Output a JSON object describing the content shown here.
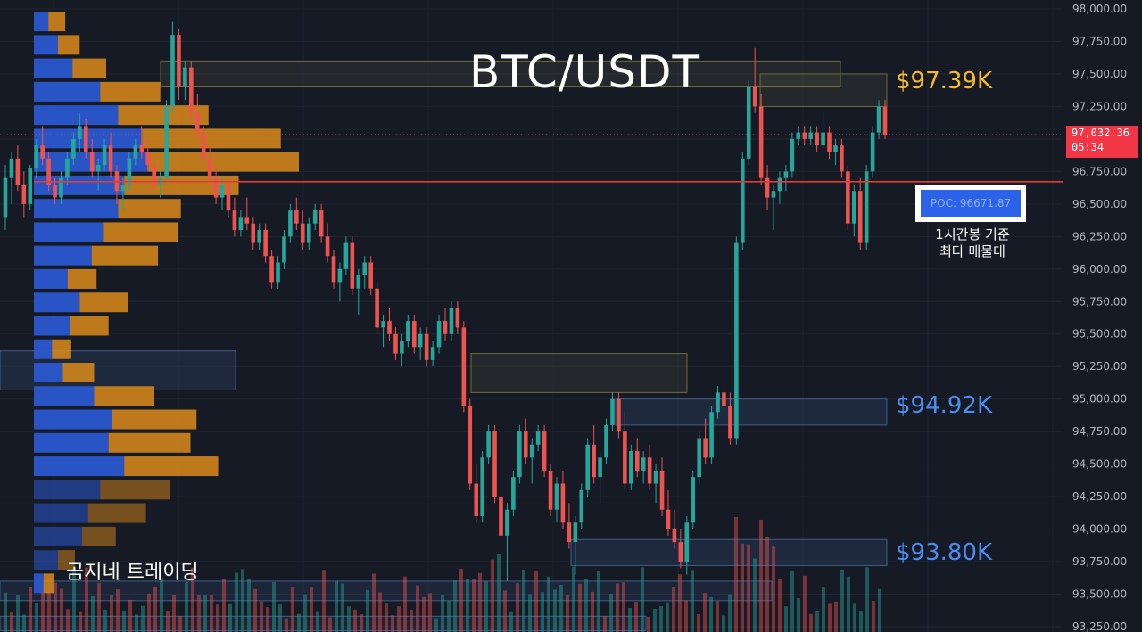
{
  "chart_data": {
    "type": "candlestick",
    "title": "BTC/USDT",
    "ylim": [
      93250,
      98000
    ],
    "y_ticks": [
      "98,000.00",
      "97,750.00",
      "97,500.00",
      "97,250.00",
      "97,000.00",
      "96,750.00",
      "96,500.00",
      "96,250.00",
      "96,000.00",
      "95,750.00",
      "95,500.00",
      "95,250.00",
      "95,000.00",
      "94,750.00",
      "94,500.00",
      "94,250.00",
      "94,000.00",
      "93,750.00",
      "93,500.00",
      "93,250.00"
    ],
    "current_price": "97,032.36",
    "countdown": "05:34",
    "current_price_value": 97032.36,
    "poc_value": 96671.87,
    "poc_label": "POC: 96671.87",
    "poc_note_line1": "1시간봉 기준",
    "poc_note_line2": "최다 매물대",
    "levels": [
      {
        "label": "$97.39K",
        "value": 97390,
        "color": "#f5b82e"
      },
      {
        "label": "$94.92K",
        "value": 94920,
        "color": "#4a8cf0"
      },
      {
        "label": "$93.80K",
        "value": 93800,
        "color": "#4a8cf0"
      }
    ],
    "volume_profile": [
      {
        "price": 97900,
        "buy": 12,
        "sell": 14
      },
      {
        "price": 97720,
        "buy": 20,
        "sell": 18
      },
      {
        "price": 97540,
        "buy": 32,
        "sell": 28
      },
      {
        "price": 97360,
        "buy": 55,
        "sell": 50
      },
      {
        "price": 97180,
        "buy": 70,
        "sell": 75
      },
      {
        "price": 97000,
        "buy": 90,
        "sell": 115
      },
      {
        "price": 96820,
        "buy": 95,
        "sell": 125
      },
      {
        "price": 96640,
        "buy": 75,
        "sell": 95
      },
      {
        "price": 96460,
        "buy": 70,
        "sell": 52
      },
      {
        "price": 96280,
        "buy": 58,
        "sell": 62
      },
      {
        "price": 96100,
        "buy": 48,
        "sell": 55
      },
      {
        "price": 95920,
        "buy": 28,
        "sell": 24
      },
      {
        "price": 95740,
        "buy": 38,
        "sell": 40
      },
      {
        "price": 95560,
        "buy": 30,
        "sell": 32
      },
      {
        "price": 95380,
        "buy": 15,
        "sell": 16
      },
      {
        "price": 95200,
        "buy": 24,
        "sell": 26
      },
      {
        "price": 95020,
        "buy": 50,
        "sell": 50
      },
      {
        "price": 94840,
        "buy": 65,
        "sell": 70
      },
      {
        "price": 94660,
        "buy": 62,
        "sell": 68
      },
      {
        "price": 94480,
        "buy": 75,
        "sell": 78
      },
      {
        "price": 94300,
        "buy": 55,
        "sell": 58
      },
      {
        "price": 94120,
        "buy": 45,
        "sell": 48
      },
      {
        "price": 93940,
        "buy": 40,
        "sell": 28
      },
      {
        "price": 93760,
        "buy": 20,
        "sell": 14
      },
      {
        "price": 93580,
        "buy": 8,
        "sell": 9
      }
    ],
    "candles": [
      [
        96400,
        96800,
        96300,
        96700
      ],
      [
        96700,
        96900,
        96500,
        96850
      ],
      [
        96850,
        96950,
        96600,
        96650
      ],
      [
        96650,
        96750,
        96400,
        96500
      ],
      [
        96500,
        96800,
        96450,
        96780
      ],
      [
        96780,
        97000,
        96700,
        96950
      ],
      [
        96950,
        97100,
        96800,
        96850
      ],
      [
        96850,
        96900,
        96600,
        96650
      ],
      [
        96650,
        96700,
        96500,
        96550
      ],
      [
        96550,
        96750,
        96500,
        96700
      ],
      [
        96700,
        96900,
        96650,
        96850
      ],
      [
        96850,
        97050,
        96800,
        97000
      ],
      [
        97000,
        97200,
        96900,
        97100
      ],
      [
        97100,
        97150,
        96850,
        96900
      ],
      [
        96900,
        97000,
        96700,
        96750
      ],
      [
        96750,
        96850,
        96600,
        96800
      ],
      [
        96800,
        97000,
        96750,
        96950
      ],
      [
        96950,
        97050,
        96700,
        96750
      ],
      [
        96750,
        96800,
        96500,
        96600
      ],
      [
        96600,
        96700,
        96450,
        96650
      ],
      [
        96650,
        96900,
        96600,
        96850
      ],
      [
        96850,
        97000,
        96800,
        96950
      ],
      [
        96950,
        97100,
        96850,
        96900
      ],
      [
        96900,
        97000,
        96750,
        96800
      ],
      [
        96800,
        96850,
        96600,
        96650
      ],
      [
        96650,
        96750,
        96550,
        96700
      ],
      [
        96700,
        97300,
        96650,
        97250
      ],
      [
        97250,
        97900,
        97200,
        97800
      ],
      [
        97800,
        97850,
        97300,
        97400
      ],
      [
        97400,
        97600,
        97300,
        97550
      ],
      [
        97550,
        97600,
        97150,
        97200
      ],
      [
        97200,
        97350,
        97000,
        97050
      ],
      [
        97050,
        97100,
        96800,
        96850
      ],
      [
        96850,
        96950,
        96650,
        96700
      ],
      [
        96700,
        96800,
        96500,
        96550
      ],
      [
        96550,
        96700,
        96450,
        96650
      ],
      [
        96650,
        96700,
        96400,
        96450
      ],
      [
        96450,
        96550,
        96250,
        96300
      ],
      [
        96300,
        96450,
        96250,
        96400
      ],
      [
        96400,
        96550,
        96300,
        96350
      ],
      [
        96350,
        96400,
        96150,
        96200
      ],
      [
        96200,
        96350,
        96150,
        96300
      ],
      [
        96300,
        96350,
        96050,
        96100
      ],
      [
        96100,
        96150,
        95850,
        95900
      ],
      [
        95900,
        96100,
        95850,
        96050
      ],
      [
        96050,
        96300,
        96000,
        96250
      ],
      [
        96250,
        96500,
        96200,
        96450
      ],
      [
        96450,
        96550,
        96300,
        96350
      ],
      [
        96350,
        96450,
        96150,
        96200
      ],
      [
        96200,
        96400,
        96150,
        96350
      ],
      [
        96350,
        96500,
        96300,
        96450
      ],
      [
        96450,
        96500,
        96200,
        96250
      ],
      [
        96250,
        96350,
        96050,
        96100
      ],
      [
        96100,
        96150,
        95850,
        95900
      ],
      [
        95900,
        96050,
        95750,
        96000
      ],
      [
        96000,
        96250,
        95950,
        96200
      ],
      [
        96200,
        96250,
        95800,
        95850
      ],
      [
        95850,
        96000,
        95650,
        95950
      ],
      [
        95950,
        96100,
        95850,
        96050
      ],
      [
        96050,
        96100,
        95800,
        95850
      ],
      [
        95850,
        95900,
        95500,
        95550
      ],
      [
        95550,
        95650,
        95400,
        95600
      ],
      [
        95600,
        95700,
        95450,
        95500
      ],
      [
        95500,
        95550,
        95300,
        95350
      ],
      [
        95350,
        95500,
        95250,
        95450
      ],
      [
        95450,
        95650,
        95400,
        95600
      ],
      [
        95600,
        95650,
        95350,
        95400
      ],
      [
        95400,
        95550,
        95300,
        95500
      ],
      [
        95500,
        95550,
        95250,
        95300
      ],
      [
        95300,
        95450,
        95250,
        95400
      ],
      [
        95400,
        95650,
        95350,
        95600
      ],
      [
        95600,
        95700,
        95450,
        95500
      ],
      [
        95500,
        95750,
        95450,
        95700
      ],
      [
        95700,
        95750,
        95500,
        95550
      ],
      [
        95550,
        95600,
        94900,
        94950
      ],
      [
        94950,
        95000,
        94300,
        94350
      ],
      [
        94350,
        94500,
        94050,
        94100
      ],
      [
        94100,
        94600,
        94050,
        94550
      ],
      [
        94550,
        94800,
        94500,
        94750
      ],
      [
        94750,
        94800,
        94200,
        94250
      ],
      [
        94250,
        94400,
        93900,
        93950
      ],
      [
        93950,
        94200,
        93600,
        94150
      ],
      [
        94150,
        94450,
        94100,
        94400
      ],
      [
        94400,
        94800,
        94350,
        94750
      ],
      [
        94750,
        94850,
        94500,
        94550
      ],
      [
        94550,
        94700,
        94350,
        94650
      ],
      [
        94650,
        94800,
        94600,
        94750
      ],
      [
        94750,
        94800,
        94400,
        94450
      ],
      [
        94450,
        94500,
        94100,
        94150
      ],
      [
        94150,
        94400,
        94050,
        94350
      ],
      [
        94350,
        94450,
        94000,
        94050
      ],
      [
        94050,
        94200,
        93850,
        93900
      ],
      [
        93900,
        94100,
        93650,
        94050
      ],
      [
        94050,
        94350,
        94000,
        94300
      ],
      [
        94300,
        94700,
        94250,
        94650
      ],
      [
        94650,
        94800,
        94350,
        94400
      ],
      [
        94400,
        94600,
        94200,
        94550
      ],
      [
        94550,
        94850,
        94500,
        94800
      ],
      [
        94800,
        95050,
        94750,
        95000
      ],
      [
        95000,
        95050,
        94700,
        94750
      ],
      [
        94750,
        94900,
        94300,
        94350
      ],
      [
        94350,
        94650,
        94300,
        94600
      ],
      [
        94600,
        94700,
        94400,
        94450
      ],
      [
        94450,
        94600,
        94350,
        94550
      ],
      [
        94550,
        94650,
        94300,
        94350
      ],
      [
        94350,
        94500,
        94200,
        94450
      ],
      [
        94450,
        94550,
        94100,
        94150
      ],
      [
        94150,
        94300,
        93950,
        94000
      ],
      [
        94000,
        94150,
        93850,
        93900
      ],
      [
        93900,
        94000,
        93700,
        93750
      ],
      [
        93750,
        94100,
        93650,
        94050
      ],
      [
        94050,
        94450,
        94000,
        94400
      ],
      [
        94400,
        94750,
        94350,
        94700
      ],
      [
        94700,
        94850,
        94500,
        94550
      ],
      [
        94550,
        94950,
        94500,
        94900
      ],
      [
        94900,
        95100,
        94850,
        95050
      ],
      [
        95050,
        95100,
        94900,
        94950
      ],
      [
        94950,
        95050,
        94650,
        94700
      ],
      [
        94700,
        96250,
        94650,
        96200
      ],
      [
        96200,
        96900,
        96150,
        96850
      ],
      [
        96850,
        97450,
        96800,
        97400
      ],
      [
        97400,
        97700,
        97200,
        97250
      ],
      [
        97250,
        97350,
        96650,
        96700
      ],
      [
        96700,
        96800,
        96450,
        96550
      ],
      [
        96550,
        96650,
        96300,
        96600
      ],
      [
        96600,
        96750,
        96500,
        96700
      ],
      [
        96700,
        96800,
        96600,
        96750
      ],
      [
        96750,
        97050,
        96700,
        97000
      ],
      [
        97000,
        97100,
        96950,
        97050
      ],
      [
        97050,
        97100,
        96950,
        97000
      ],
      [
        97000,
        97100,
        96950,
        97050
      ],
      [
        97050,
        97100,
        96900,
        96950
      ],
      [
        96950,
        97200,
        96900,
        97050
      ],
      [
        97050,
        97100,
        96850,
        96900
      ],
      [
        96900,
        97000,
        96800,
        96950
      ],
      [
        96950,
        97000,
        96700,
        96750
      ],
      [
        96750,
        96800,
        96300,
        96350
      ],
      [
        96350,
        96650,
        96250,
        96600
      ],
      [
        96600,
        96700,
        96150,
        96200
      ],
      [
        96200,
        96800,
        96150,
        96750
      ],
      [
        96750,
        97100,
        96700,
        97050
      ],
      [
        97050,
        97300,
        97000,
        97250
      ],
      [
        97250,
        97300,
        97000,
        97030
      ]
    ]
  },
  "zones": [
    {
      "label": "",
      "kind": "yellow"
    }
  ]
}
